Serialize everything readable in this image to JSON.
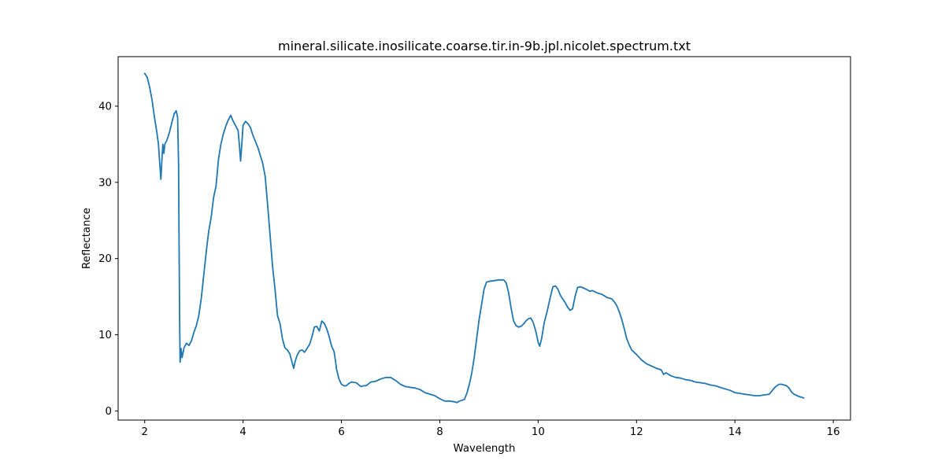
{
  "chart_data": {
    "type": "line",
    "title": "mineral.silicate.inosilicate.coarse.tir.in-9b.jpl.nicolet.spectrum.txt",
    "xlabel": "Wavelength",
    "ylabel": "Reflectance",
    "xlim": [
      1.46,
      16.35
    ],
    "ylim": [
      -1.2,
      46.5
    ],
    "x_ticks": [
      2,
      4,
      6,
      8,
      10,
      12,
      14,
      16
    ],
    "y_ticks": [
      0,
      10,
      20,
      30,
      40
    ],
    "grid": false,
    "legend": "none",
    "series": [
      {
        "color": "#1f77b4",
        "points": [
          [
            2.0,
            44.3
          ],
          [
            2.05,
            43.8
          ],
          [
            2.1,
            42.5
          ],
          [
            2.15,
            40.8
          ],
          [
            2.2,
            38.5
          ],
          [
            2.25,
            36.5
          ],
          [
            2.28,
            35.0
          ],
          [
            2.3,
            33.0
          ],
          [
            2.33,
            30.4
          ],
          [
            2.35,
            33.0
          ],
          [
            2.37,
            35.0
          ],
          [
            2.39,
            33.8
          ],
          [
            2.41,
            35.0
          ],
          [
            2.45,
            35.5
          ],
          [
            2.5,
            36.5
          ],
          [
            2.55,
            37.8
          ],
          [
            2.6,
            39.0
          ],
          [
            2.64,
            39.4
          ],
          [
            2.67,
            38.5
          ],
          [
            2.69,
            32.0
          ],
          [
            2.7,
            22.0
          ],
          [
            2.71,
            12.0
          ],
          [
            2.72,
            6.4
          ],
          [
            2.74,
            8.2
          ],
          [
            2.76,
            7.0
          ],
          [
            2.8,
            8.3
          ],
          [
            2.85,
            8.9
          ],
          [
            2.9,
            8.6
          ],
          [
            2.95,
            9.2
          ],
          [
            3.0,
            10.3
          ],
          [
            3.05,
            11.2
          ],
          [
            3.1,
            12.5
          ],
          [
            3.15,
            14.8
          ],
          [
            3.2,
            17.8
          ],
          [
            3.25,
            20.8
          ],
          [
            3.3,
            23.5
          ],
          [
            3.35,
            25.3
          ],
          [
            3.4,
            28.0
          ],
          [
            3.45,
            29.5
          ],
          [
            3.5,
            33.0
          ],
          [
            3.55,
            35.0
          ],
          [
            3.6,
            36.4
          ],
          [
            3.65,
            37.4
          ],
          [
            3.7,
            38.2
          ],
          [
            3.75,
            38.8
          ],
          [
            3.8,
            38.0
          ],
          [
            3.85,
            37.4
          ],
          [
            3.9,
            36.8
          ],
          [
            3.93,
            34.5
          ],
          [
            3.95,
            32.8
          ],
          [
            3.98,
            35.5
          ],
          [
            4.0,
            37.5
          ],
          [
            4.05,
            38.0
          ],
          [
            4.1,
            37.7
          ],
          [
            4.15,
            37.2
          ],
          [
            4.2,
            36.2
          ],
          [
            4.3,
            34.6
          ],
          [
            4.4,
            32.5
          ],
          [
            4.45,
            30.8
          ],
          [
            4.5,
            27.0
          ],
          [
            4.55,
            23.0
          ],
          [
            4.6,
            19.0
          ],
          [
            4.65,
            16.0
          ],
          [
            4.7,
            12.5
          ],
          [
            4.75,
            11.5
          ],
          [
            4.8,
            9.5
          ],
          [
            4.85,
            8.3
          ],
          [
            4.9,
            8.0
          ],
          [
            4.95,
            7.5
          ],
          [
            5.0,
            6.3
          ],
          [
            5.03,
            5.6
          ],
          [
            5.06,
            6.5
          ],
          [
            5.1,
            7.3
          ],
          [
            5.15,
            7.9
          ],
          [
            5.2,
            8.0
          ],
          [
            5.25,
            7.7
          ],
          [
            5.3,
            8.2
          ],
          [
            5.35,
            8.7
          ],
          [
            5.4,
            9.7
          ],
          [
            5.45,
            11.0
          ],
          [
            5.5,
            11.1
          ],
          [
            5.55,
            10.5
          ],
          [
            5.6,
            11.8
          ],
          [
            5.65,
            11.5
          ],
          [
            5.7,
            10.8
          ],
          [
            5.75,
            9.8
          ],
          [
            5.8,
            8.5
          ],
          [
            5.85,
            7.8
          ],
          [
            5.88,
            6.5
          ],
          [
            5.9,
            5.5
          ],
          [
            5.95,
            4.2
          ],
          [
            6.0,
            3.5
          ],
          [
            6.05,
            3.3
          ],
          [
            6.1,
            3.3
          ],
          [
            6.15,
            3.6
          ],
          [
            6.2,
            3.8
          ],
          [
            6.3,
            3.7
          ],
          [
            6.4,
            3.2
          ],
          [
            6.45,
            3.3
          ],
          [
            6.5,
            3.3
          ],
          [
            6.6,
            3.8
          ],
          [
            6.7,
            3.9
          ],
          [
            6.8,
            4.2
          ],
          [
            6.9,
            4.4
          ],
          [
            7.0,
            4.4
          ],
          [
            7.1,
            4.0
          ],
          [
            7.2,
            3.5
          ],
          [
            7.3,
            3.2
          ],
          [
            7.4,
            3.1
          ],
          [
            7.5,
            3.0
          ],
          [
            7.6,
            2.8
          ],
          [
            7.7,
            2.4
          ],
          [
            7.8,
            2.2
          ],
          [
            7.9,
            2.0
          ],
          [
            8.0,
            1.6
          ],
          [
            8.1,
            1.3
          ],
          [
            8.2,
            1.3
          ],
          [
            8.3,
            1.2
          ],
          [
            8.35,
            1.1
          ],
          [
            8.4,
            1.3
          ],
          [
            8.5,
            1.5
          ],
          [
            8.55,
            2.3
          ],
          [
            8.6,
            3.5
          ],
          [
            8.65,
            5.0
          ],
          [
            8.7,
            7.0
          ],
          [
            8.75,
            9.5
          ],
          [
            8.8,
            12.0
          ],
          [
            8.85,
            14.0
          ],
          [
            8.9,
            16.0
          ],
          [
            8.95,
            16.9
          ],
          [
            9.0,
            17.0
          ],
          [
            9.1,
            17.1
          ],
          [
            9.2,
            17.2
          ],
          [
            9.3,
            17.2
          ],
          [
            9.35,
            16.8
          ],
          [
            9.4,
            15.5
          ],
          [
            9.45,
            13.5
          ],
          [
            9.5,
            11.8
          ],
          [
            9.55,
            11.2
          ],
          [
            9.6,
            11.0
          ],
          [
            9.65,
            11.1
          ],
          [
            9.7,
            11.4
          ],
          [
            9.75,
            11.8
          ],
          [
            9.8,
            12.1
          ],
          [
            9.85,
            12.2
          ],
          [
            9.9,
            11.6
          ],
          [
            9.95,
            10.5
          ],
          [
            10.0,
            9.0
          ],
          [
            10.03,
            8.5
          ],
          [
            10.07,
            9.5
          ],
          [
            10.12,
            11.5
          ],
          [
            10.18,
            13.0
          ],
          [
            10.25,
            15.0
          ],
          [
            10.3,
            16.3
          ],
          [
            10.35,
            16.4
          ],
          [
            10.4,
            16.0
          ],
          [
            10.45,
            15.2
          ],
          [
            10.5,
            14.7
          ],
          [
            10.55,
            14.2
          ],
          [
            10.6,
            13.6
          ],
          [
            10.65,
            13.2
          ],
          [
            10.7,
            13.4
          ],
          [
            10.75,
            15.0
          ],
          [
            10.8,
            16.2
          ],
          [
            10.85,
            16.3
          ],
          [
            10.9,
            16.2
          ],
          [
            11.0,
            15.9
          ],
          [
            11.05,
            15.7
          ],
          [
            11.1,
            15.8
          ],
          [
            11.2,
            15.5
          ],
          [
            11.3,
            15.3
          ],
          [
            11.4,
            14.9
          ],
          [
            11.5,
            14.7
          ],
          [
            11.55,
            14.3
          ],
          [
            11.6,
            13.8
          ],
          [
            11.65,
            13.0
          ],
          [
            11.7,
            12.0
          ],
          [
            11.75,
            10.8
          ],
          [
            11.8,
            9.5
          ],
          [
            11.85,
            8.7
          ],
          [
            11.9,
            8.0
          ],
          [
            12.0,
            7.4
          ],
          [
            12.1,
            6.7
          ],
          [
            12.2,
            6.2
          ],
          [
            12.3,
            5.9
          ],
          [
            12.4,
            5.6
          ],
          [
            12.5,
            5.4
          ],
          [
            12.55,
            4.8
          ],
          [
            12.6,
            5.0
          ],
          [
            12.7,
            4.6
          ],
          [
            12.8,
            4.4
          ],
          [
            12.9,
            4.3
          ],
          [
            13.0,
            4.1
          ],
          [
            13.1,
            4.0
          ],
          [
            13.2,
            3.8
          ],
          [
            13.3,
            3.7
          ],
          [
            13.4,
            3.6
          ],
          [
            13.5,
            3.4
          ],
          [
            13.6,
            3.3
          ],
          [
            13.7,
            3.1
          ],
          [
            13.8,
            2.9
          ],
          [
            13.9,
            2.7
          ],
          [
            14.0,
            2.4
          ],
          [
            14.1,
            2.3
          ],
          [
            14.2,
            2.2
          ],
          [
            14.3,
            2.1
          ],
          [
            14.4,
            2.0
          ],
          [
            14.5,
            2.0
          ],
          [
            14.6,
            2.1
          ],
          [
            14.7,
            2.2
          ],
          [
            14.75,
            2.6
          ],
          [
            14.8,
            3.0
          ],
          [
            14.85,
            3.3
          ],
          [
            14.9,
            3.5
          ],
          [
            14.95,
            3.5
          ],
          [
            15.0,
            3.4
          ],
          [
            15.05,
            3.3
          ],
          [
            15.1,
            3.0
          ],
          [
            15.15,
            2.5
          ],
          [
            15.2,
            2.2
          ],
          [
            15.3,
            1.9
          ],
          [
            15.4,
            1.7
          ]
        ]
      }
    ]
  }
}
